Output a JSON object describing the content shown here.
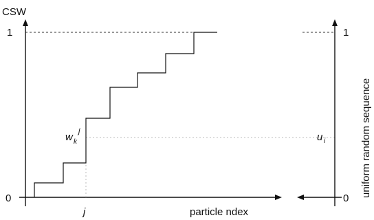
{
  "left_axis": {
    "y_label": "CSW",
    "tick_top": "1",
    "tick_bottom": "0",
    "x_label": "particle ndex",
    "j_label": "j",
    "w_label_main": "w",
    "w_label_sub": "k",
    "w_label_sup": "j"
  },
  "right_axis": {
    "label": "uniform random sequence",
    "tick_top": "1",
    "tick_bottom": "0",
    "u_label_main": "u",
    "u_label_sub": "i"
  },
  "colors": {
    "ink": "#111111",
    "guide": "#bbbbbb"
  }
}
